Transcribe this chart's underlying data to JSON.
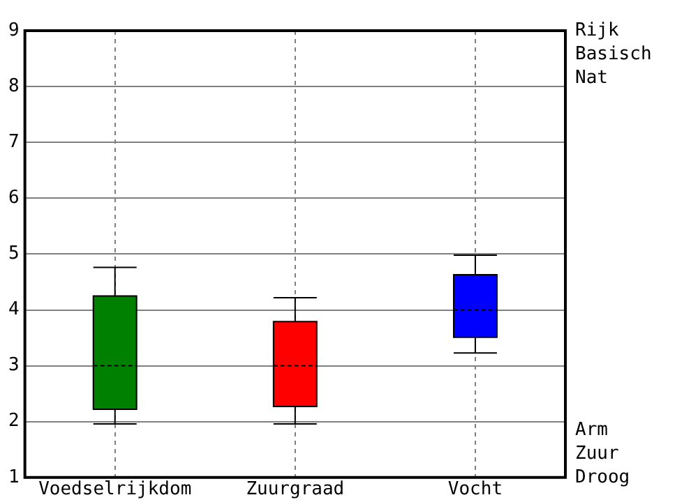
{
  "chart_data": {
    "type": "box",
    "categories": [
      "Voedselrijkdom",
      "Zuurgraad",
      "Vocht"
    ],
    "colors": [
      "#008000",
      "#ff0000",
      "#0000ff"
    ],
    "boxes": [
      {
        "low": 1.96,
        "q1": 2.22,
        "median": 3.0,
        "q3": 4.25,
        "high": 4.76
      },
      {
        "low": 1.96,
        "q1": 2.27,
        "median": 3.0,
        "q3": 3.79,
        "high": 4.22
      },
      {
        "low": 3.23,
        "q1": 3.51,
        "median": 4.0,
        "q3": 4.63,
        "high": 4.98
      }
    ],
    "ylim": [
      1,
      9
    ],
    "yticks": [
      1,
      2,
      3,
      4,
      5,
      6,
      7,
      8,
      9
    ],
    "grid": true,
    "annotations": [
      "Rijk",
      "Basisch",
      "Nat",
      "Arm",
      "Zuur",
      "Droog"
    ]
  }
}
